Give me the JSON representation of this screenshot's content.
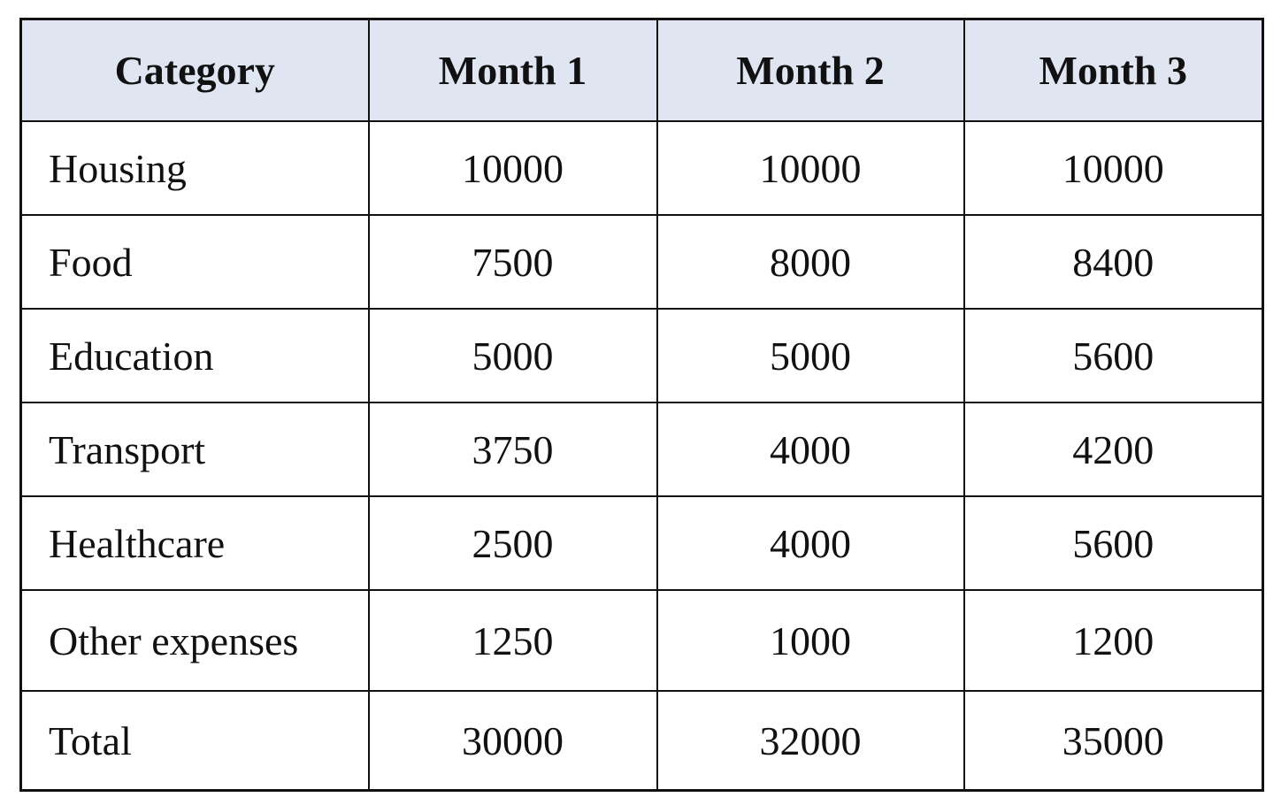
{
  "table": {
    "header": [
      "Category",
      "Month 1",
      "Month 2",
      "Month 3"
    ],
    "rows": [
      [
        "Housing",
        10000,
        10000,
        10000
      ],
      [
        "Food",
        7500,
        8000,
        8400
      ],
      [
        "Education",
        5000,
        5000,
        5600
      ],
      [
        "Transport",
        3750,
        4000,
        4200
      ],
      [
        "Healthcare",
        2500,
        4000,
        5600
      ],
      [
        "Other expenses",
        1250,
        1000,
        1200
      ],
      [
        "Total",
        30000,
        32000,
        35000
      ]
    ]
  }
}
